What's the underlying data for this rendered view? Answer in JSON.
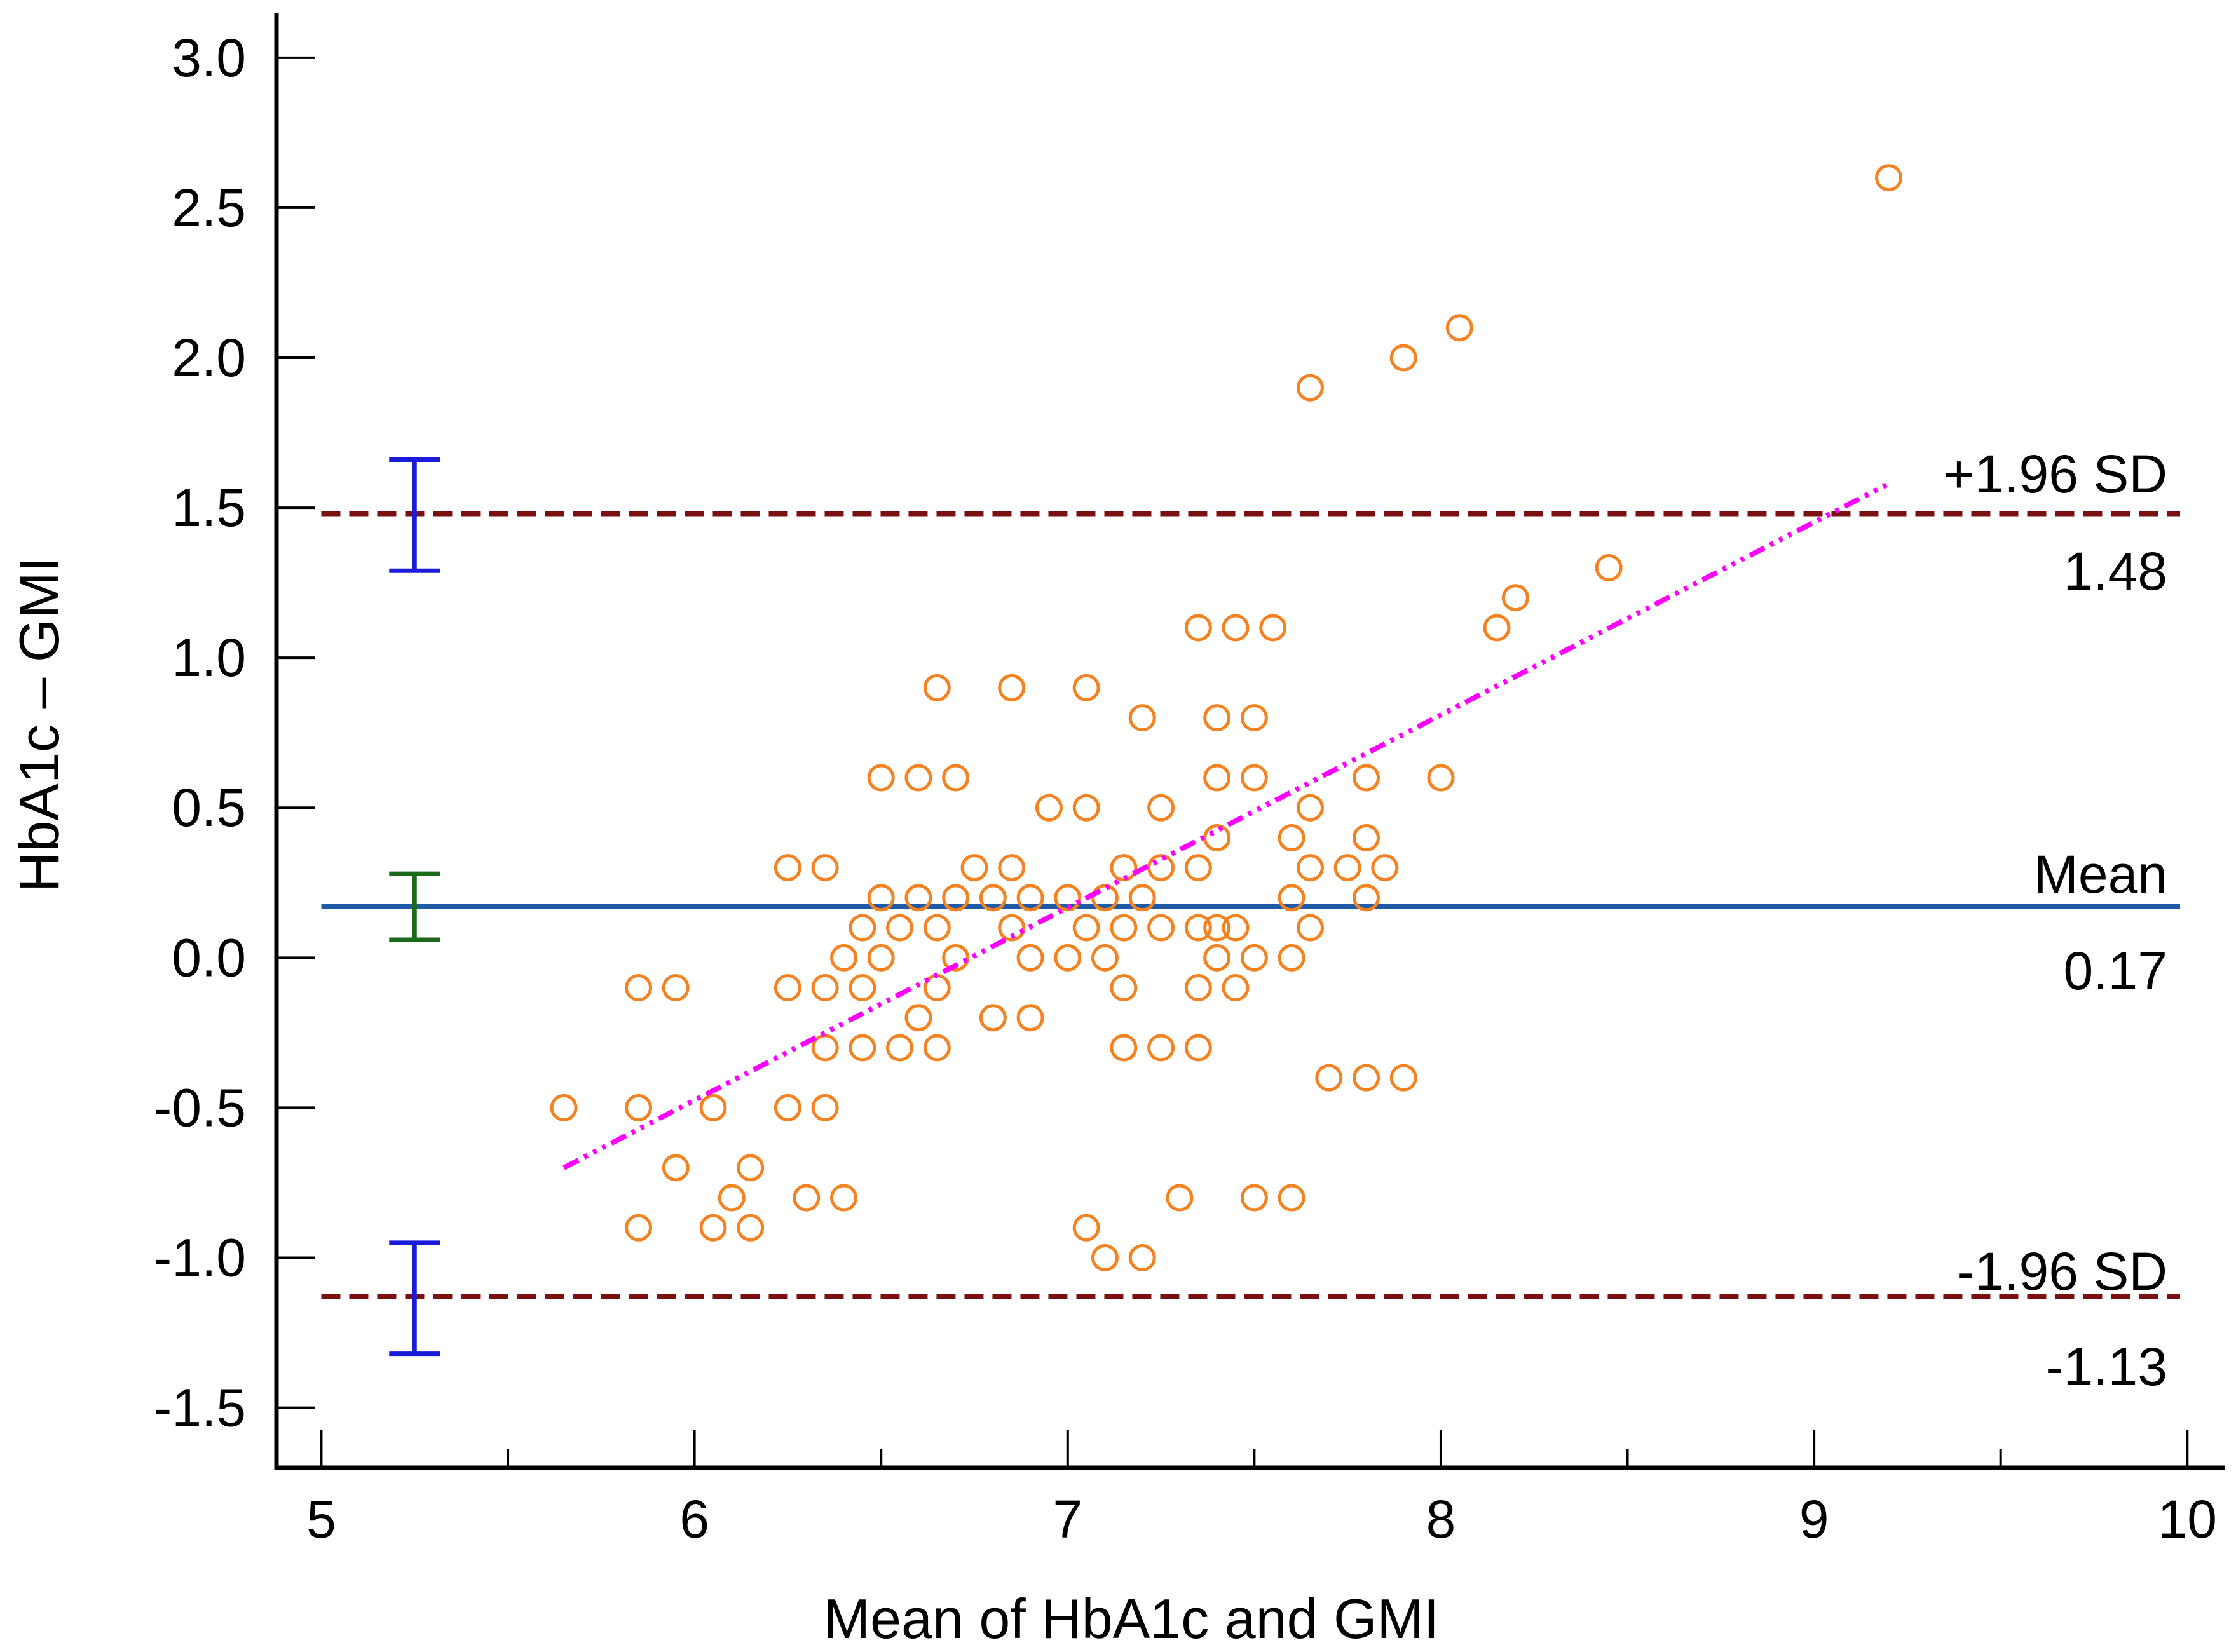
{
  "chart_data": {
    "type": "scatter",
    "subtype": "bland-altman",
    "title": "",
    "xlabel": "Mean of HbA1c and GMI",
    "ylabel": "HbA1c – GMI",
    "xlim": [
      4.88,
      10.1
    ],
    "ylim": [
      -1.7,
      3.15
    ],
    "x_ticks": [
      5,
      6,
      7,
      8,
      9,
      10
    ],
    "x_tick_labels": [
      "5",
      "6",
      "7",
      "8",
      "9",
      "10"
    ],
    "x_minor_ticks": [
      5.5,
      6.5,
      7.5,
      8.5,
      9.5
    ],
    "y_ticks": [
      -1.5,
      -1.0,
      -0.5,
      0.0,
      0.5,
      1.0,
      1.5,
      2.0,
      2.5,
      3.0
    ],
    "y_tick_labels": [
      "-1.5",
      "-1.0",
      "-0.5",
      "0.0",
      "0.5",
      "1.0",
      "1.5",
      "2.0",
      "2.5",
      "3.0"
    ],
    "grid": false,
    "colors": {
      "points": "#f58220",
      "mean_line": "#1f5aa6",
      "limit_lines": "#7b1010",
      "regression": "#ff00ff",
      "ci_limits": "#1a1adb",
      "ci_mean": "#1a6a1a",
      "axis": "#000000"
    },
    "mean_line": {
      "value": 0.17,
      "label": "Mean",
      "value_label": "0.17"
    },
    "upper_limit": {
      "value": 1.48,
      "label": "+1.96 SD",
      "value_label": "1.48"
    },
    "lower_limit": {
      "value": -1.13,
      "label": "-1.96 SD",
      "value_label": "-1.13"
    },
    "confidence_intervals": [
      {
        "name": "upper-limit-ci",
        "x": 5.25,
        "low": 1.29,
        "high": 1.66,
        "color": "ci_limits"
      },
      {
        "name": "mean-ci",
        "x": 5.25,
        "low": 0.06,
        "high": 0.28,
        "color": "ci_mean"
      },
      {
        "name": "lower-limit-ci",
        "x": 5.25,
        "low": -1.32,
        "high": -0.95,
        "color": "ci_limits"
      }
    ],
    "regression_line": {
      "x": [
        5.65,
        9.2
      ],
      "y": [
        -0.7,
        1.58
      ]
    },
    "points": [
      [
        5.65,
        -0.5
      ],
      [
        5.85,
        -0.1
      ],
      [
        5.85,
        -0.5
      ],
      [
        5.85,
        -0.9
      ],
      [
        5.95,
        -0.1
      ],
      [
        5.95,
        -0.7
      ],
      [
        6.05,
        -0.5
      ],
      [
        6.05,
        -0.9
      ],
      [
        6.1,
        -0.8
      ],
      [
        6.15,
        -0.7
      ],
      [
        6.15,
        -0.9
      ],
      [
        6.25,
        0.3
      ],
      [
        6.25,
        -0.1
      ],
      [
        6.25,
        -0.5
      ],
      [
        6.3,
        -0.8
      ],
      [
        6.35,
        0.3
      ],
      [
        6.35,
        -0.1
      ],
      [
        6.35,
        -0.3
      ],
      [
        6.35,
        -0.5
      ],
      [
        6.4,
        0.0
      ],
      [
        6.4,
        -0.8
      ],
      [
        6.45,
        0.1
      ],
      [
        6.45,
        -0.1
      ],
      [
        6.45,
        -0.3
      ],
      [
        6.5,
        0.6
      ],
      [
        6.5,
        0.2
      ],
      [
        6.5,
        0.0
      ],
      [
        6.55,
        0.1
      ],
      [
        6.55,
        -0.3
      ],
      [
        6.6,
        0.6
      ],
      [
        6.6,
        0.2
      ],
      [
        6.6,
        -0.2
      ],
      [
        6.65,
        0.9
      ],
      [
        6.65,
        0.1
      ],
      [
        6.65,
        -0.1
      ],
      [
        6.65,
        -0.3
      ],
      [
        6.7,
        0.6
      ],
      [
        6.7,
        0.2
      ],
      [
        6.7,
        0.0
      ],
      [
        6.75,
        0.3
      ],
      [
        6.8,
        0.2
      ],
      [
        6.8,
        -0.2
      ],
      [
        6.85,
        0.9
      ],
      [
        6.85,
        0.3
      ],
      [
        6.85,
        0.1
      ],
      [
        6.9,
        0.2
      ],
      [
        6.9,
        0.0
      ],
      [
        6.9,
        -0.2
      ],
      [
        6.95,
        0.5
      ],
      [
        7.0,
        0.2
      ],
      [
        7.0,
        0.0
      ],
      [
        7.05,
        0.9
      ],
      [
        7.05,
        0.5
      ],
      [
        7.05,
        0.1
      ],
      [
        7.05,
        -0.9
      ],
      [
        7.1,
        0.2
      ],
      [
        7.1,
        0.0
      ],
      [
        7.1,
        -1.0
      ],
      [
        7.15,
        0.3
      ],
      [
        7.15,
        0.1
      ],
      [
        7.15,
        -0.1
      ],
      [
        7.15,
        -0.3
      ],
      [
        7.2,
        0.8
      ],
      [
        7.2,
        0.2
      ],
      [
        7.2,
        -1.0
      ],
      [
        7.25,
        0.5
      ],
      [
        7.25,
        0.3
      ],
      [
        7.25,
        0.1
      ],
      [
        7.25,
        -0.3
      ],
      [
        7.3,
        -0.8
      ],
      [
        7.35,
        1.1
      ],
      [
        7.35,
        0.3
      ],
      [
        7.35,
        0.1
      ],
      [
        7.35,
        -0.1
      ],
      [
        7.35,
        -0.3
      ],
      [
        7.4,
        0.8
      ],
      [
        7.4,
        0.6
      ],
      [
        7.4,
        0.4
      ],
      [
        7.4,
        0.1
      ],
      [
        7.4,
        0.0
      ],
      [
        7.45,
        1.1
      ],
      [
        7.45,
        0.1
      ],
      [
        7.45,
        -0.1
      ],
      [
        7.5,
        0.8
      ],
      [
        7.5,
        0.6
      ],
      [
        7.5,
        0.0
      ],
      [
        7.5,
        -0.8
      ],
      [
        7.55,
        1.1
      ],
      [
        7.6,
        0.4
      ],
      [
        7.6,
        0.2
      ],
      [
        7.6,
        0.0
      ],
      [
        7.6,
        -0.8
      ],
      [
        7.65,
        1.9
      ],
      [
        7.65,
        0.5
      ],
      [
        7.65,
        0.3
      ],
      [
        7.65,
        0.1
      ],
      [
        7.7,
        -0.4
      ],
      [
        7.75,
        0.3
      ],
      [
        7.8,
        0.6
      ],
      [
        7.8,
        0.4
      ],
      [
        7.8,
        0.2
      ],
      [
        7.8,
        -0.4
      ],
      [
        7.85,
        0.3
      ],
      [
        7.9,
        2.0
      ],
      [
        7.9,
        -0.4
      ],
      [
        8.0,
        0.6
      ],
      [
        8.05,
        2.1
      ],
      [
        8.15,
        1.1
      ],
      [
        8.2,
        1.2
      ],
      [
        8.45,
        1.3
      ],
      [
        9.2,
        2.6
      ]
    ]
  }
}
